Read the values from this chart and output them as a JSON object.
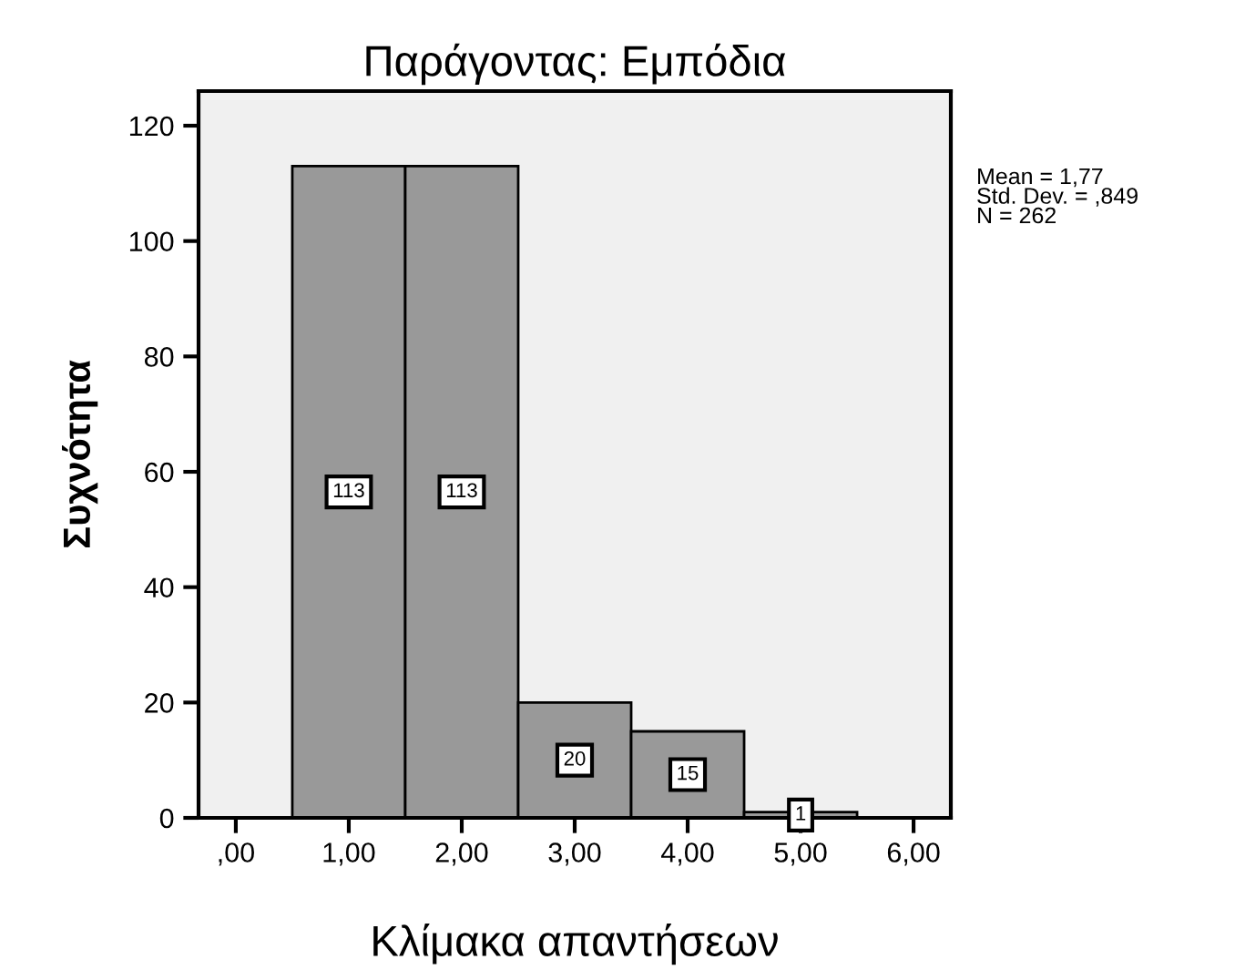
{
  "chart_data": {
    "type": "histogram",
    "title": "Παράγοντας: Εμπόδια",
    "xlabel": "Κλίμακα απαντήσεων",
    "ylabel": "Συχνότητα",
    "bins": [
      0.5,
      1.5,
      2.5,
      3.5,
      4.5,
      5.5
    ],
    "values": [
      113,
      113,
      20,
      15,
      1
    ],
    "color": "#999999",
    "data_labels": true,
    "xlim": [
      -0.33,
      6.33
    ],
    "ylim": [
      0,
      126
    ],
    "xticks": [
      {
        "value": 0,
        "label": ",00"
      },
      {
        "value": 1,
        "label": "1,00"
      },
      {
        "value": 2,
        "label": "2,00"
      },
      {
        "value": 3,
        "label": "3,00"
      },
      {
        "value": 4,
        "label": "4,00"
      },
      {
        "value": 5,
        "label": "5,00"
      },
      {
        "value": 6,
        "label": "6,00"
      }
    ],
    "yticks": [
      0,
      20,
      40,
      60,
      80,
      100,
      120
    ],
    "grid": false,
    "annotations": [
      "Mean = 1,77\nStd. Dev. = ,849\nN = 262"
    ]
  }
}
